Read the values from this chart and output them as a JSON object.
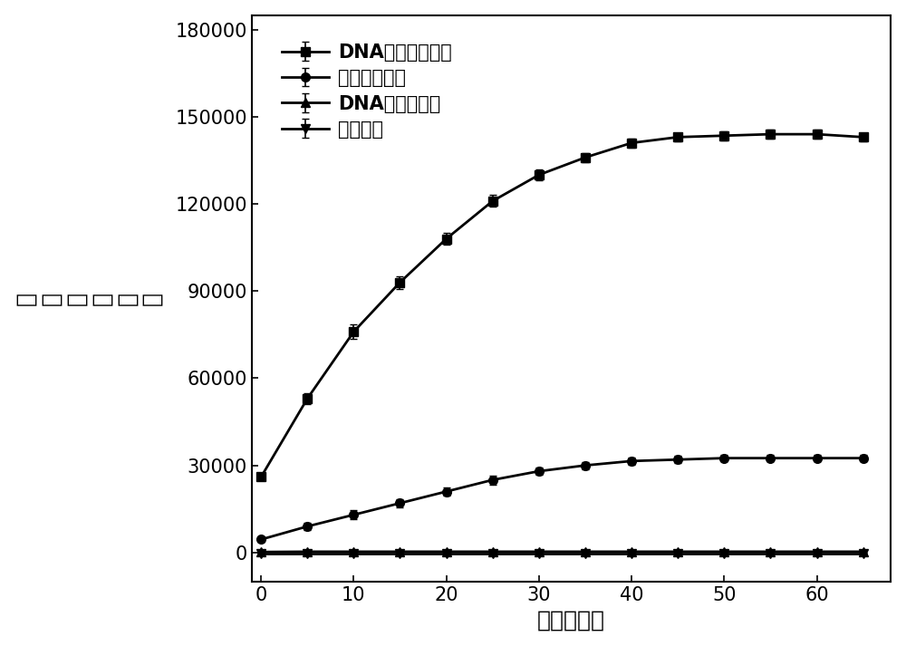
{
  "x": [
    0,
    5,
    10,
    15,
    20,
    25,
    30,
    35,
    40,
    45,
    50,
    55,
    60,
    65
  ],
  "series1_y": [
    26000,
    53000,
    76000,
    93000,
    108000,
    121000,
    130000,
    136000,
    141000,
    143000,
    143500,
    144000,
    144000,
    143000
  ],
  "series1_err": [
    1200,
    2000,
    2500,
    2200,
    2000,
    2000,
    1800,
    1500,
    1500,
    1500,
    1500,
    1500,
    1500,
    1500
  ],
  "series2_y": [
    4500,
    9000,
    13000,
    17000,
    21000,
    25000,
    28000,
    30000,
    31500,
    32000,
    32500,
    32500,
    32500,
    32500
  ],
  "series2_err": [
    800,
    1200,
    1500,
    1500,
    1500,
    1500,
    1200,
    1200,
    1200,
    1200,
    1200,
    1200,
    1200,
    1200
  ],
  "series3_y": [
    200,
    300,
    300,
    300,
    300,
    300,
    300,
    300,
    300,
    300,
    300,
    300,
    300,
    300
  ],
  "series3_err": [
    200,
    200,
    200,
    200,
    200,
    200,
    200,
    200,
    200,
    200,
    200,
    200,
    200,
    200
  ],
  "series4_y": [
    -500,
    -500,
    -500,
    -500,
    -500,
    -500,
    -500,
    -500,
    -500,
    -500,
    -500,
    -500,
    -500,
    -500
  ],
  "series4_err": [
    200,
    200,
    200,
    200,
    200,
    200,
    200,
    200,
    200,
    200,
    200,
    200,
    200,
    200
  ],
  "legend_labels": [
    "DNA酶解后上清液",
    "未处理对照组",
    "DNA酶解后磁珠",
    "空白对照"
  ],
  "xlabel": "时间（分）",
  "ylabel": "化学发光强度",
  "xlim": [
    -1,
    68
  ],
  "ylim": [
    -10000,
    185000
  ],
  "yticks": [
    0,
    30000,
    60000,
    90000,
    120000,
    150000,
    180000
  ],
  "xticks": [
    0,
    10,
    20,
    30,
    40,
    50,
    60
  ],
  "line_color": "#000000",
  "bg_color": "#ffffff",
  "marker_size": 7,
  "line_width": 2.0,
  "capsize": 3,
  "elinewidth": 1.2,
  "xlabel_fontsize": 18,
  "ylabel_fontsize": 18,
  "tick_fontsize": 15,
  "legend_fontsize": 15
}
